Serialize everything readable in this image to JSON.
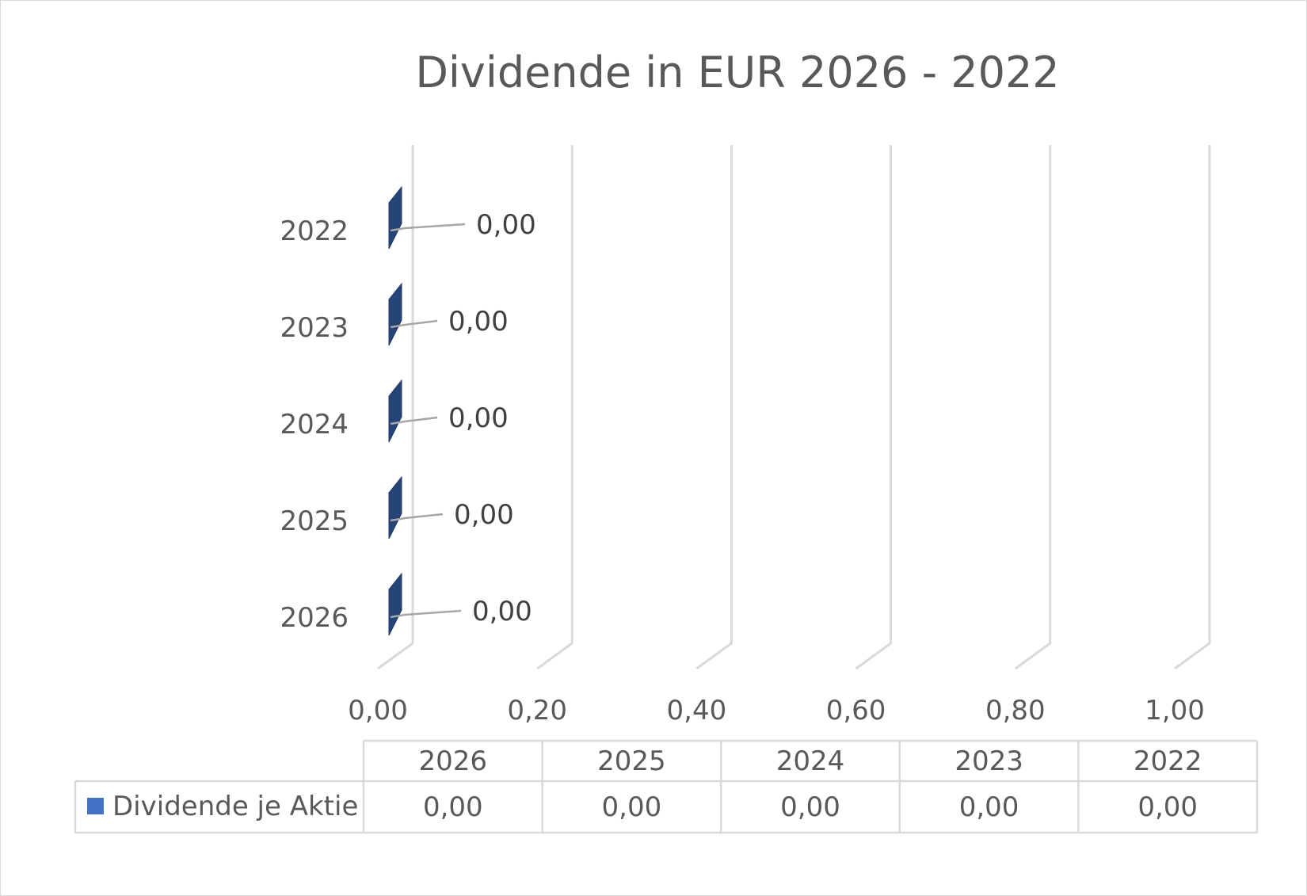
{
  "chart_data": {
    "type": "bar",
    "orientation": "horizontal",
    "style": "3d",
    "title": "Dividende in EUR 2026 - 2022",
    "categories": [
      "2026",
      "2025",
      "2024",
      "2023",
      "2022"
    ],
    "series": [
      {
        "name": "Dividende je Aktie",
        "values": [
          0.0,
          0.0,
          0.0,
          0.0,
          0.0
        ],
        "color": "#4472c4"
      }
    ],
    "data_labels": [
      "0,00",
      "0,00",
      "0,00",
      "0,00",
      "0,00"
    ],
    "xlim": [
      0,
      1
    ],
    "x_ticks": [
      0,
      0.2,
      0.4,
      0.6,
      0.8,
      1.0
    ],
    "x_tick_labels": [
      "0,00",
      "0,20",
      "0,40",
      "0,60",
      "0,80",
      "1,00"
    ],
    "grid": true,
    "legend": "data-table-below"
  },
  "colors": {
    "bar_front": "#264478",
    "bar_side": "#1f3864",
    "legend_key": "#4472c4",
    "grid": "#d9d9d9",
    "text": "#595959"
  }
}
